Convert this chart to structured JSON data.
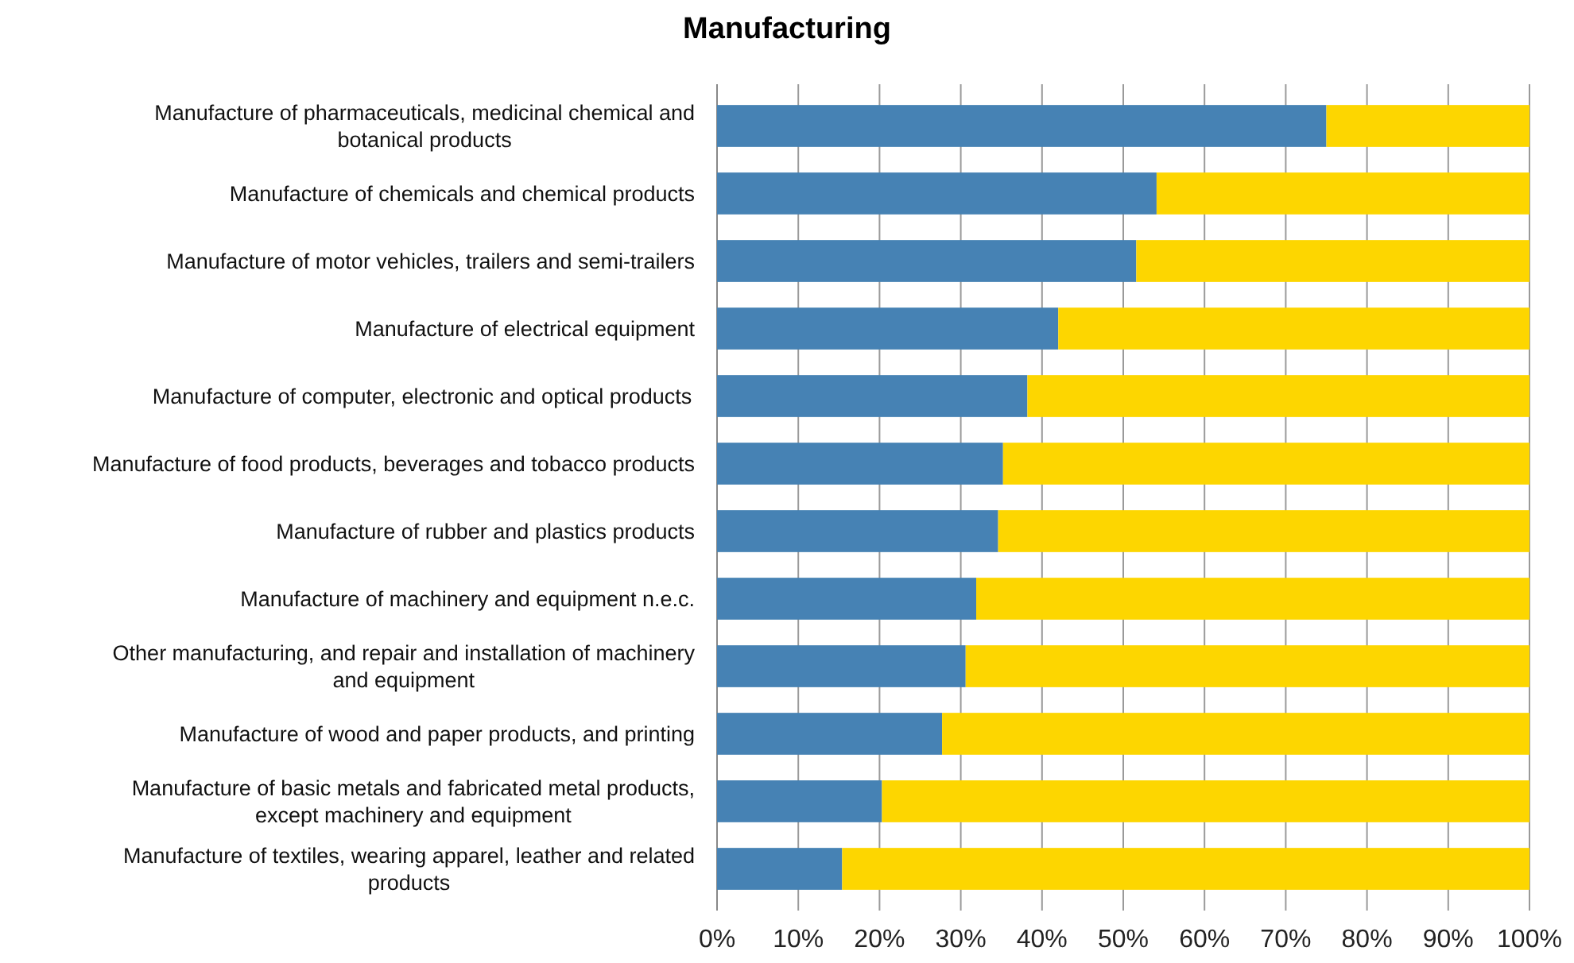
{
  "chart_data": {
    "type": "bar",
    "title": "Manufacturing",
    "orientation": "horizontal",
    "stacked": true,
    "categories": [
      "Manufacture of pharmaceuticals, medicinal chemical and botanical products",
      "Manufacture of chemicals and chemical products",
      "Manufacture of motor vehicles, trailers and semi-trailers",
      "Manufacture of electrical equipment",
      "Manufacture of computer, electronic  and optical products",
      "Manufacture of food products, beverages and tobacco products",
      "Manufacture of rubber and plastics products",
      "Manufacture of machinery and equipment n.e.c.",
      "Other manufacturing, and repair and installation of machinery and equipment",
      "Manufacture of wood and paper products, and printing",
      "Manufacture of basic metals and fabricated metal products, except machinery and equipment",
      "Manufacture of textiles, wearing apparel, leather and related products"
    ],
    "series": [
      {
        "color": "#4682b4",
        "values": [
          75,
          54.1,
          51.6,
          42,
          38.2,
          35.2,
          34.6,
          31.9,
          30.6,
          27.7,
          20.3,
          15.4
        ]
      },
      {
        "color": "#fdd600",
        "values": [
          25,
          45.9,
          48.4,
          58,
          61.8,
          64.8,
          65.4,
          68.1,
          69.4,
          72.3,
          79.7,
          84.6
        ]
      }
    ],
    "xlim": [
      0,
      100
    ],
    "xticks": [
      {
        "value": 0,
        "label": "0%"
      },
      {
        "value": 10,
        "label": "10%"
      },
      {
        "value": 20,
        "label": "20%"
      },
      {
        "value": 30,
        "label": "30%"
      },
      {
        "value": 40,
        "label": "40%"
      },
      {
        "value": 50,
        "label": "50%"
      },
      {
        "value": 60,
        "label": "60%"
      },
      {
        "value": 70,
        "label": "70%"
      },
      {
        "value": 80,
        "label": "80%"
      },
      {
        "value": 90,
        "label": "90%"
      },
      {
        "value": 100,
        "label": "100%"
      }
    ],
    "grid": "x"
  }
}
